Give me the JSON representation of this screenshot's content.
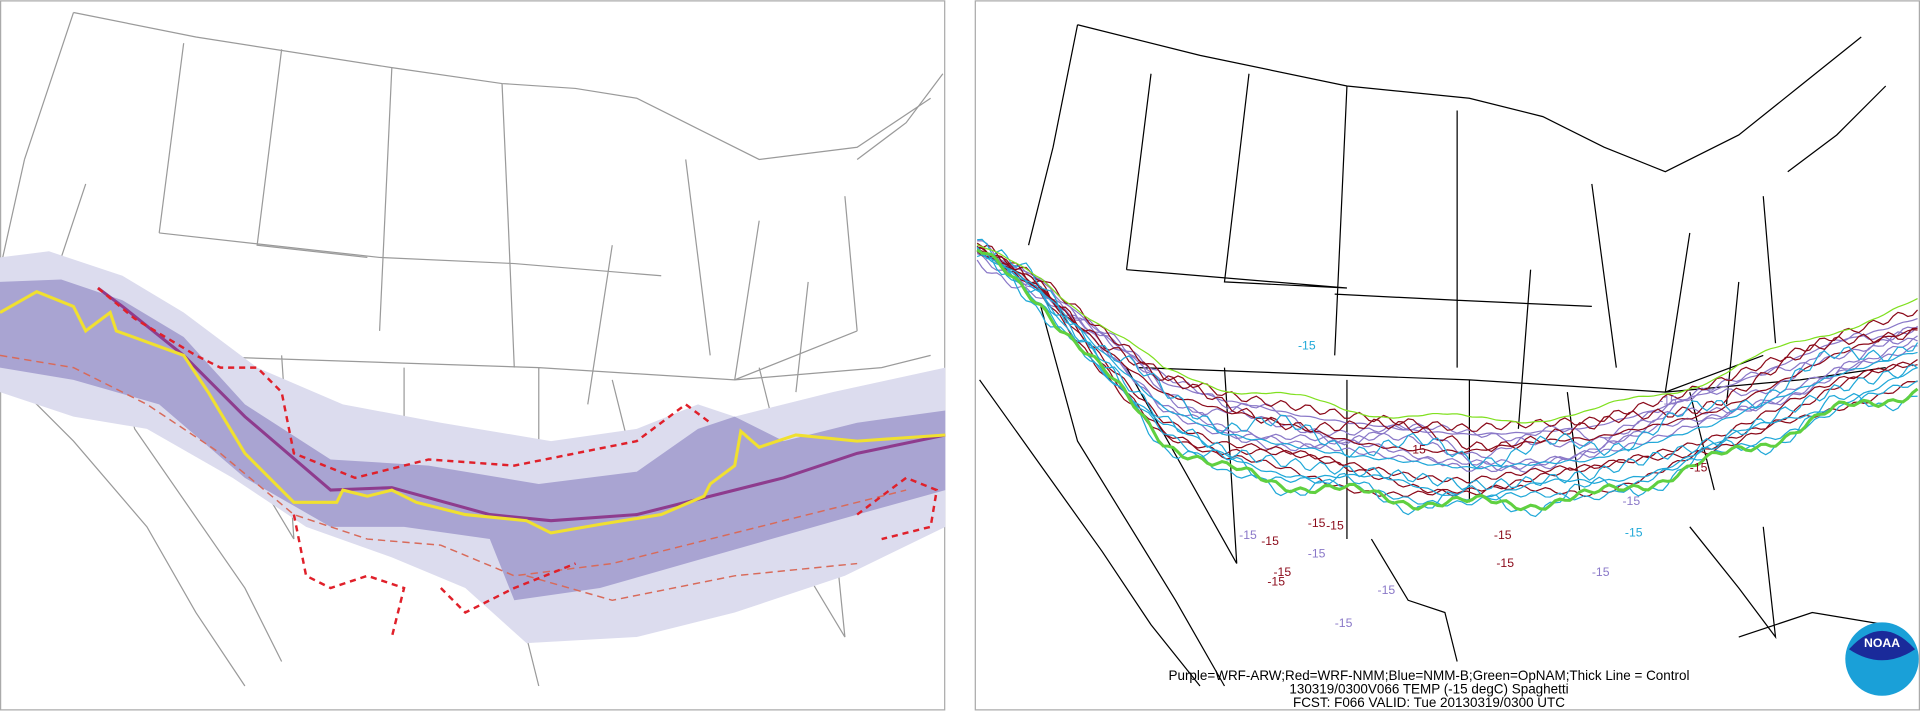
{
  "panels": {
    "right": {
      "legend_text": "Purple=WRF-ARW;Red=WRF-NMM;Blue=NMM-B;Green=OpNAM;Thick Line = Control",
      "title": "130319/0300V066 TEMP (-15 degC) Spaghetti",
      "valid_time": "FCST: F066  VALID: Tue  20130319/0300 UTC",
      "logo": "NOAA",
      "contour_labels": [
        "-15",
        "-15",
        "-15",
        "-15",
        "-15",
        "-15",
        "-15",
        "-15",
        "-15",
        "-15",
        "-15",
        "-15",
        "-15",
        "-15",
        "-15",
        "-15",
        "-15",
        "-15"
      ]
    }
  }
}
